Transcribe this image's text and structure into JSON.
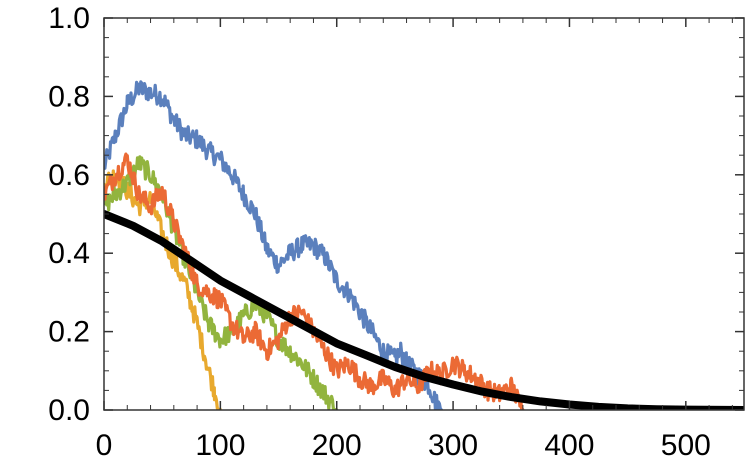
{
  "chart_data": {
    "type": "line",
    "title": "",
    "xlabel": "",
    "ylabel": "",
    "xlim": [
      0,
      550
    ],
    "ylim": [
      0,
      1.0
    ],
    "grid": false,
    "x_ticks": [
      0,
      100,
      200,
      300,
      400,
      500
    ],
    "x_tick_labels": [
      "0",
      "100",
      "200",
      "300",
      "400",
      "500"
    ],
    "y_ticks": [
      0.0,
      0.2,
      0.4,
      0.6,
      0.8,
      1.0
    ],
    "y_tick_labels": [
      "0.0",
      "0.2",
      "0.4",
      "0.6",
      "0.8",
      "1.0"
    ],
    "series": [
      {
        "color": "#5b80bd",
        "noisy": true,
        "points": [
          [
            0,
            0.62
          ],
          [
            10,
            0.7
          ],
          [
            20,
            0.78
          ],
          [
            30,
            0.82
          ],
          [
            40,
            0.81
          ],
          [
            50,
            0.8
          ],
          [
            60,
            0.74
          ],
          [
            70,
            0.7
          ],
          [
            80,
            0.69
          ],
          [
            90,
            0.66
          ],
          [
            100,
            0.64
          ],
          [
            110,
            0.6
          ],
          [
            120,
            0.55
          ],
          [
            130,
            0.5
          ],
          [
            140,
            0.41
          ],
          [
            150,
            0.37
          ],
          [
            160,
            0.4
          ],
          [
            170,
            0.42
          ],
          [
            180,
            0.42
          ],
          [
            190,
            0.39
          ],
          [
            200,
            0.33
          ],
          [
            210,
            0.3
          ],
          [
            220,
            0.25
          ],
          [
            230,
            0.2
          ],
          [
            240,
            0.15
          ],
          [
            250,
            0.13
          ],
          [
            255,
            0.15
          ],
          [
            260,
            0.12
          ],
          [
            270,
            0.09
          ],
          [
            280,
            0.06
          ],
          [
            285,
            0.02
          ],
          [
            290,
            0.0
          ]
        ]
      },
      {
        "color": "#e8a92e",
        "noisy": true,
        "points": [
          [
            0,
            0.58
          ],
          [
            10,
            0.6
          ],
          [
            20,
            0.56
          ],
          [
            30,
            0.52
          ],
          [
            40,
            0.54
          ],
          [
            50,
            0.45
          ],
          [
            60,
            0.38
          ],
          [
            70,
            0.32
          ],
          [
            80,
            0.22
          ],
          [
            90,
            0.1
          ],
          [
            95,
            0.05
          ],
          [
            100,
            0.0
          ]
        ]
      },
      {
        "color": "#92b43e",
        "noisy": true,
        "points": [
          [
            0,
            0.52
          ],
          [
            10,
            0.55
          ],
          [
            20,
            0.58
          ],
          [
            30,
            0.63
          ],
          [
            40,
            0.6
          ],
          [
            50,
            0.55
          ],
          [
            60,
            0.46
          ],
          [
            70,
            0.38
          ],
          [
            80,
            0.3
          ],
          [
            90,
            0.22
          ],
          [
            100,
            0.18
          ],
          [
            110,
            0.2
          ],
          [
            120,
            0.24
          ],
          [
            130,
            0.27
          ],
          [
            140,
            0.24
          ],
          [
            150,
            0.18
          ],
          [
            160,
            0.15
          ],
          [
            170,
            0.12
          ],
          [
            180,
            0.08
          ],
          [
            190,
            0.04
          ],
          [
            200,
            0.0
          ]
        ]
      },
      {
        "color": "#eb6a35",
        "noisy": true,
        "points": [
          [
            0,
            0.55
          ],
          [
            10,
            0.6
          ],
          [
            20,
            0.64
          ],
          [
            30,
            0.55
          ],
          [
            40,
            0.52
          ],
          [
            50,
            0.56
          ],
          [
            60,
            0.48
          ],
          [
            70,
            0.4
          ],
          [
            80,
            0.32
          ],
          [
            90,
            0.3
          ],
          [
            100,
            0.28
          ],
          [
            110,
            0.22
          ],
          [
            120,
            0.18
          ],
          [
            130,
            0.2
          ],
          [
            140,
            0.15
          ],
          [
            150,
            0.18
          ],
          [
            160,
            0.24
          ],
          [
            170,
            0.25
          ],
          [
            180,
            0.2
          ],
          [
            190,
            0.15
          ],
          [
            200,
            0.1
          ],
          [
            210,
            0.12
          ],
          [
            220,
            0.08
          ],
          [
            230,
            0.06
          ],
          [
            240,
            0.08
          ],
          [
            250,
            0.05
          ],
          [
            260,
            0.08
          ],
          [
            270,
            0.06
          ],
          [
            280,
            0.1
          ],
          [
            290,
            0.09
          ],
          [
            300,
            0.12
          ],
          [
            310,
            0.1
          ],
          [
            320,
            0.08
          ],
          [
            330,
            0.05
          ],
          [
            340,
            0.04
          ],
          [
            350,
            0.06
          ],
          [
            355,
            0.03
          ],
          [
            360,
            0.0
          ]
        ]
      },
      {
        "color": "#000000",
        "noisy": false,
        "points": [
          [
            0,
            0.5
          ],
          [
            25,
            0.47
          ],
          [
            50,
            0.43
          ],
          [
            75,
            0.38
          ],
          [
            100,
            0.33
          ],
          [
            125,
            0.29
          ],
          [
            150,
            0.25
          ],
          [
            175,
            0.21
          ],
          [
            200,
            0.17
          ],
          [
            225,
            0.14
          ],
          [
            250,
            0.11
          ],
          [
            275,
            0.085
          ],
          [
            300,
            0.065
          ],
          [
            325,
            0.047
          ],
          [
            350,
            0.033
          ],
          [
            375,
            0.022
          ],
          [
            400,
            0.014
          ],
          [
            425,
            0.008
          ],
          [
            450,
            0.004
          ],
          [
            475,
            0.002
          ],
          [
            500,
            0.001
          ],
          [
            550,
            0.0
          ]
        ]
      }
    ]
  }
}
